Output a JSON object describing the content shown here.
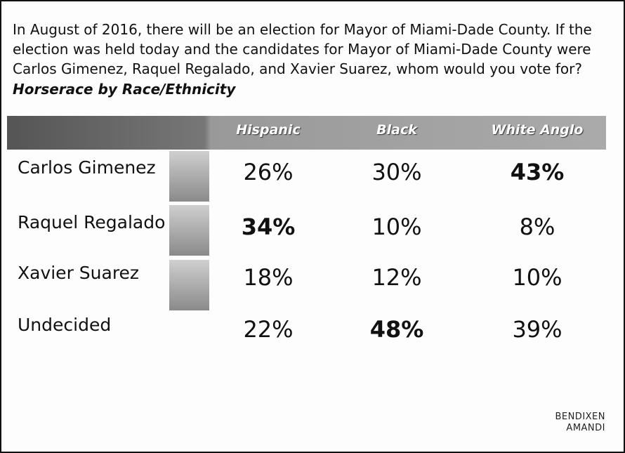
{
  "question": {
    "lines": [
      "In August of 2016, there will be an election for Mayor of Miami-Dade County.  If the",
      "election was held today and the candidates for Mayor of Miami-Dade County were",
      "Carlos Gimenez, Raquel Regalado, and Xavier Suarez, whom would you vote for?"
    ],
    "subtitle": "Horserace by Race/Ethnicity"
  },
  "table": {
    "columns": [
      "Hispanic",
      "Black",
      "White Anglo"
    ],
    "rows": [
      {
        "name": "Carlos Gimenez",
        "cells": [
          "26%",
          "30%",
          "43%"
        ],
        "bold_cell": 2,
        "photo": true
      },
      {
        "name": "Raquel Regalado",
        "cells": [
          "34%",
          "10%",
          "8%"
        ],
        "bold_cell": 0,
        "photo": true
      },
      {
        "name": "Xavier Suarez",
        "cells": [
          "18%",
          "12%",
          "10%"
        ],
        "photo": true
      },
      {
        "name": "Undecided",
        "cells": [
          "22%",
          "48%",
          "39%"
        ],
        "bold_cell": 1,
        "photo": false
      }
    ]
  },
  "logo": [
    "BENDIXEN",
    "AMANDI"
  ]
}
